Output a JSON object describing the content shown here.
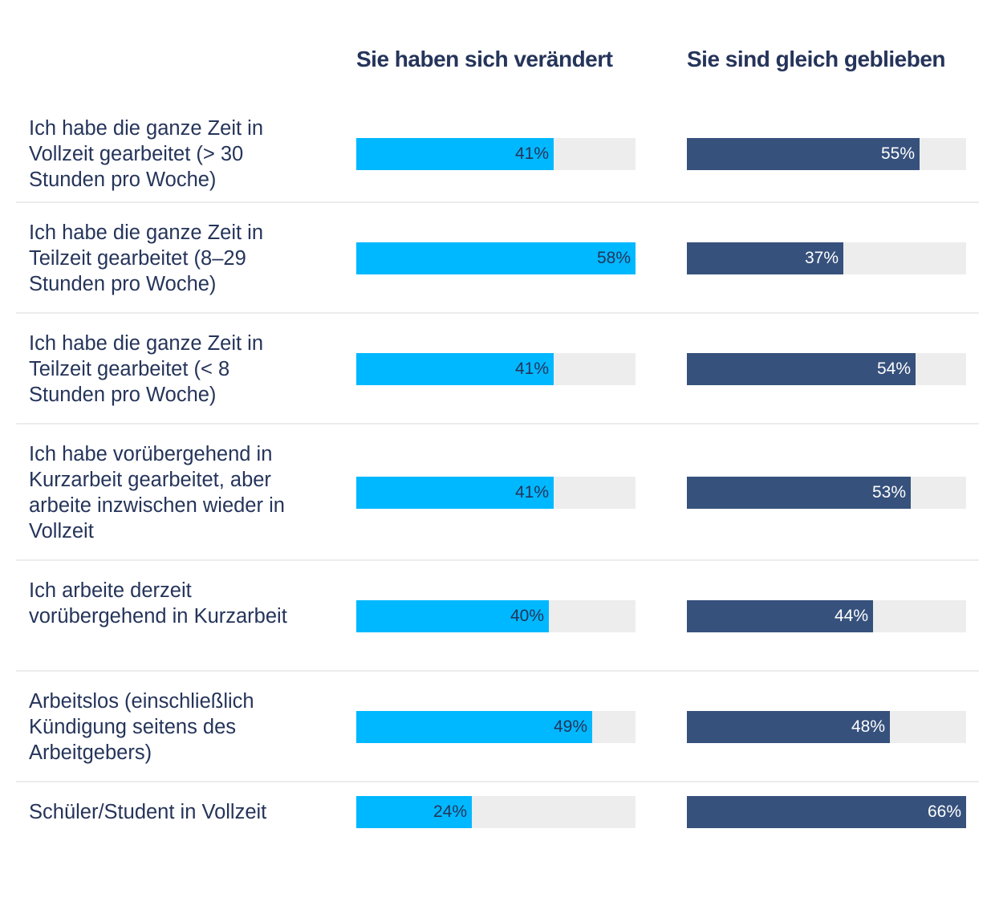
{
  "chart_data": {
    "type": "bar",
    "orientation": "horizontal",
    "title": "",
    "categories": [
      "Ich habe die ganze Zeit in Vollzeit gearbeitet (> 30 Stunden pro Woche)",
      "Ich habe die ganze Zeit in Teilzeit gearbeitet (8–29 Stunden pro Woche)",
      "Ich habe die ganze Zeit in Teilzeit gearbeitet (< 8 Stunden pro Woche)",
      "Ich habe vorübergehend in Kurzarbeit gearbeitet, aber arbeite inzwischen wieder in Vollzeit",
      "Ich arbeite derzeit vorübergehend in Kurzarbeit",
      "Arbeitslos (einschließlich Kündigung seitens des Arbeitgebers)",
      "Schüler/Student in Vollzeit"
    ],
    "series": [
      {
        "name": "Sie haben sich verändert",
        "color": "#00b8ff",
        "label_color": "#25345a",
        "values": [
          41,
          58,
          41,
          41,
          40,
          49,
          24
        ],
        "labels": [
          "41%",
          "58%",
          "41%",
          "41%",
          "40%",
          "49%",
          "24%"
        ],
        "scale_max": 58
      },
      {
        "name": "Sie sind gleich geblieben",
        "color": "#36517c",
        "label_color": "#ffffff",
        "values": [
          55,
          37,
          54,
          53,
          44,
          48,
          66
        ],
        "labels": [
          "55%",
          "37%",
          "54%",
          "53%",
          "44%",
          "48%",
          "66%"
        ],
        "scale_max": 66
      }
    ],
    "track_color": "#ededed",
    "unit": "%",
    "legend": "column headers on top",
    "grid": false
  }
}
